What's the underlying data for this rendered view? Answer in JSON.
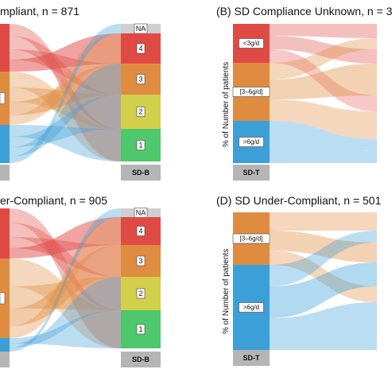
{
  "panels": {
    "a": {
      "title": "mpliant, n = 871",
      "axis_label": "SD-B"
    },
    "b": {
      "title": "(B) SD Compliance Unknown, n = 3",
      "axis_label": "SD-T",
      "ylabel": "% of Number of patients",
      "categories": [
        "<3g/d",
        "[3–6g/d]",
        ">6g/d"
      ]
    },
    "c": {
      "title": "er-Compliant, n = 905",
      "axis_label": "SD-B"
    },
    "d": {
      "title": "(D) SD Under-Compliant, n = 501",
      "axis_label": "SD-T",
      "ylabel": "% of Number of patients",
      "categories": [
        "[3–6g/d]",
        ">6g/d"
      ]
    }
  },
  "sdb_levels": [
    "NA",
    "4",
    "3",
    "2",
    "1"
  ],
  "colors": {
    "red": "#e04a45",
    "orange": "#e08c40",
    "yellow": "#d2cf4a",
    "green": "#4fc76c",
    "blue": "#3d9fd8",
    "na_gray": "#cfcfcf",
    "label_gray": "#b5b5b5"
  }
}
